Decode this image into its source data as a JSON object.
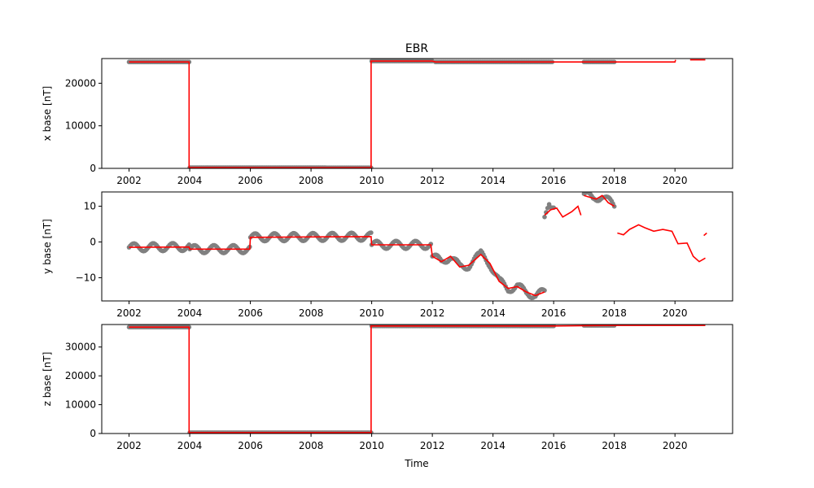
{
  "figure": {
    "title": "EBR",
    "xlabel": "Time"
  },
  "colors": {
    "points": "#808080",
    "line": "#ff0000",
    "axis": "#000000"
  },
  "chart_data": [
    {
      "type": "scatter",
      "title": "EBR",
      "xlabel": "",
      "ylabel": "x base [nT]",
      "xlim": [
        2001.1,
        2021.9
      ],
      "ylim": [
        0,
        25800
      ],
      "xticks": [
        "2002",
        "2004",
        "2006",
        "2008",
        "2010",
        "2012",
        "2014",
        "2016",
        "2018",
        "2020"
      ],
      "yticks": [
        "0",
        "10000",
        "20000"
      ],
      "yticks_values": [
        0,
        10000,
        20000
      ],
      "grid": false,
      "series": [
        {
          "kind": "points",
          "segments": [
            {
              "x": [
                2002.0,
                2003.98
              ],
              "y": [
                25000,
                25000
              ]
            },
            {
              "x": [
                2004.0,
                2009.98
              ],
              "y": [
                200,
                150
              ]
            },
            {
              "x": [
                2010.0,
                2012.0
              ],
              "y": [
                25200,
                25200
              ]
            },
            {
              "x": [
                2012.1,
                2015.95
              ],
              "y": [
                25000,
                25000
              ]
            },
            {
              "x": [
                2017.0,
                2018.0
              ],
              "y": [
                25000,
                25000
              ]
            }
          ]
        },
        {
          "kind": "line",
          "segments": [
            {
              "x": [
                2002.0,
                2003.98,
                2003.98,
                2004.0,
                2009.98,
                2009.98,
                2010.0,
                2012.0,
                2012.1,
                2015.95,
                2018.0,
                2020.0,
                2020.02
              ],
              "y": [
                25000,
                25000,
                200,
                200,
                150,
                25200,
                25200,
                25200,
                25000,
                25000,
                25000,
                25000,
                25500
              ]
            },
            {
              "x": [
                2020.5,
                2021.0
              ],
              "y": [
                25500,
                25500
              ]
            }
          ]
        }
      ]
    },
    {
      "type": "scatter",
      "xlabel": "",
      "ylabel": "y base [nT]",
      "xlim": [
        2001.1,
        2021.9
      ],
      "ylim": [
        -16.5,
        14
      ],
      "xticks": [
        "2002",
        "2004",
        "2006",
        "2008",
        "2010",
        "2012",
        "2014",
        "2016",
        "2018",
        "2020"
      ],
      "yticks": [
        "−10",
        "0",
        "10"
      ],
      "yticks_values": [
        -10,
        0,
        10
      ],
      "grid": false,
      "series": [
        {
          "kind": "points",
          "segments": [
            {
              "x": [
                2002.0,
                2003.98
              ],
              "y": [
                -1.5,
                -1.4
              ]
            },
            {
              "x": [
                2004.0,
                2005.98
              ],
              "y": [
                -2.0,
                -2.0
              ]
            },
            {
              "x": [
                2006.0,
                2009.98
              ],
              "y": [
                1.3,
                1.5
              ]
            },
            {
              "x": [
                2010.0,
                2011.95
              ],
              "y": [
                -0.8,
                -0.8
              ]
            },
            {
              "x": [
                2012.0,
                2012.3,
                2012.6,
                2012.9,
                2013.2,
                2013.6,
                2013.9,
                2014.2,
                2014.5,
                2014.8,
                2015.1,
                2015.4,
                2015.7
              ],
              "y": [
                -4.0,
                -5.5,
                -4.0,
                -7.0,
                -6.5,
                -3.5,
                -6.0,
                -11.0,
                -13.0,
                -12.5,
                -14.0,
                -15.0,
                -14.0
              ]
            },
            {
              "x": [
                2015.7,
                2015.85,
                2016.0
              ],
              "y": [
                7.0,
                9.5,
                10.5
              ]
            },
            {
              "x": [
                2017.0,
                2017.3,
                2017.6,
                2018.0
              ],
              "y": [
                13.5,
                12.0,
                13.0,
                10.0
              ]
            }
          ]
        },
        {
          "kind": "line",
          "segments": [
            {
              "x": [
                2002.0,
                2003.98,
                2004.0,
                2005.98,
                2006.0,
                2009.98,
                2010.0,
                2011.95,
                2012.0,
                2012.3,
                2012.6,
                2012.9,
                2013.2,
                2013.6,
                2013.9,
                2014.2,
                2014.5,
                2014.8,
                2015.1,
                2015.4,
                2015.7
              ],
              "y": [
                -1.5,
                -1.4,
                -2.0,
                -2.0,
                1.3,
                1.5,
                -0.8,
                -0.8,
                -4.0,
                -5.5,
                -4.0,
                -7.0,
                -6.5,
                -3.5,
                -6.0,
                -11.0,
                -13.0,
                -12.5,
                -14.0,
                -15.0,
                -14.0
              ]
            },
            {
              "x": [
                2015.7,
                2015.9,
                2016.1,
                2016.3,
                2016.6,
                2016.8,
                2016.9
              ],
              "y": [
                7.5,
                9.0,
                9.5,
                7.0,
                8.5,
                10.0,
                7.5
              ]
            },
            {
              "x": [
                2017.0,
                2017.2,
                2017.4,
                2017.6,
                2017.8,
                2018.0
              ],
              "y": [
                13.0,
                12.5,
                12.0,
                13.0,
                11.0,
                10.0
              ]
            },
            {
              "x": [
                2018.1,
                2018.3,
                2018.5,
                2018.8,
                2019.0,
                2019.3,
                2019.6,
                2019.9,
                2020.1,
                2020.4,
                2020.6,
                2020.8,
                2021.0
              ],
              "y": [
                2.5,
                2.0,
                3.5,
                4.8,
                4.0,
                3.0,
                3.5,
                3.0,
                -0.5,
                -0.3,
                -4.0,
                -5.5,
                -4.5
              ]
            },
            {
              "x": [
                2020.95,
                2021.05
              ],
              "y": [
                1.8,
                2.5
              ]
            }
          ]
        }
      ]
    },
    {
      "type": "scatter",
      "xlabel": "Time",
      "ylabel": "z base [nT]",
      "xlim": [
        2001.1,
        2021.9
      ],
      "ylim": [
        0,
        37800
      ],
      "xticks": [
        "2002",
        "2004",
        "2006",
        "2008",
        "2010",
        "2012",
        "2014",
        "2016",
        "2018",
        "2020"
      ],
      "yticks": [
        "0",
        "10000",
        "20000",
        "30000"
      ],
      "yticks_values": [
        0,
        10000,
        20000,
        30000
      ],
      "grid": false,
      "series": [
        {
          "kind": "points",
          "segments": [
            {
              "x": [
                2002.0,
                2003.98
              ],
              "y": [
                36900,
                36900
              ]
            },
            {
              "x": [
                2004.0,
                2009.98
              ],
              "y": [
                300,
                300
              ]
            },
            {
              "x": [
                2010.0,
                2016.0
              ],
              "y": [
                37300,
                37300
              ]
            },
            {
              "x": [
                2017.0,
                2018.0
              ],
              "y": [
                37500,
                37500
              ]
            }
          ]
        },
        {
          "kind": "line",
          "segments": [
            {
              "x": [
                2002.0,
                2003.98,
                2003.98,
                2004.0,
                2009.98,
                2009.98,
                2010.0,
                2016.0,
                2018.0,
                2021.0
              ],
              "y": [
                36900,
                36900,
                300,
                300,
                300,
                37300,
                37300,
                37300,
                37500,
                37500
              ]
            }
          ]
        }
      ]
    }
  ]
}
